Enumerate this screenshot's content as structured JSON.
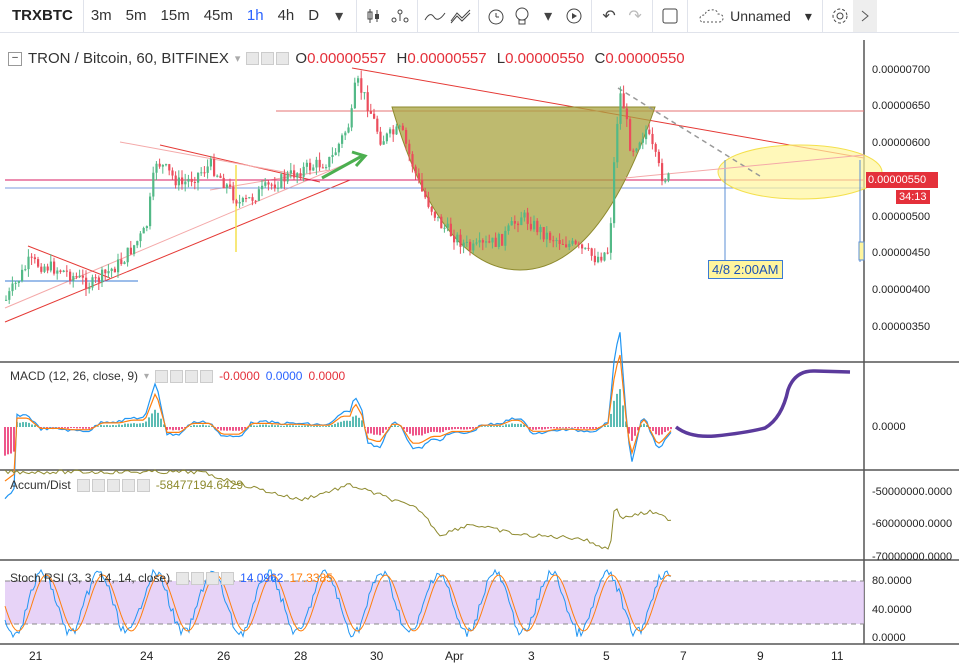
{
  "toolbar": {
    "symbol": "TRXBTC",
    "intervals": [
      "3m",
      "5m",
      "15m",
      "45m",
      "1h",
      "4h",
      "D"
    ],
    "active_interval": "1h",
    "layout_name": "Unnamed"
  },
  "main_legend": {
    "title": "TRON / Bitcoin, 60, BITFINEX",
    "o_label": "O",
    "o": "0.00000557",
    "h_label": "H",
    "h": "0.00000557",
    "l_label": "L",
    "l": "0.00000550",
    "c_label": "C",
    "c": "0.00000550"
  },
  "price_axis": [
    "0.00000700",
    "0.00000650",
    "0.00000600",
    "0.00000500",
    "0.00000450",
    "0.00000400",
    "0.00000350"
  ],
  "current_price": {
    "value": "0.00000550",
    "countdown": "34:13"
  },
  "projection_label": "4/8 2:00AM",
  "macd": {
    "title": "MACD (12, 26, close, 9)",
    "v1": "-0.0000",
    "v2": "0.0000",
    "v3": "0.0000",
    "axis": "0.0000"
  },
  "accum": {
    "title": "Accum/Dist",
    "value": "-58477194.6429",
    "axis": [
      "-50000000.0000",
      "-60000000.0000",
      "-70000000.0000"
    ]
  },
  "stoch": {
    "title": "Stoch RSI (3, 3, 14, 14, close)",
    "k": "14.0962",
    "d": "17.3385",
    "axis": [
      "80.0000",
      "40.0000",
      "0.0000"
    ]
  },
  "time_axis": [
    "21",
    "24",
    "26",
    "28",
    "30",
    "Apr",
    "3",
    "5",
    "7",
    "9",
    "11"
  ],
  "colors": {
    "accent": "#2962ff",
    "price_red": "#e4303a",
    "cup_fill": "#a8a33f",
    "ellipse": "#f7f36a",
    "macd_draw": "#5b3a9c",
    "stoch_band": "#e1c8f5"
  }
}
